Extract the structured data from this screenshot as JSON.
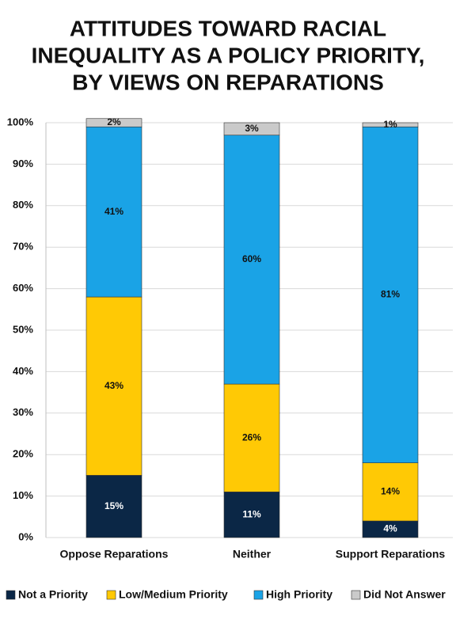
{
  "chart_data": {
    "type": "stacked_bar",
    "title": [
      "ATTITUDES TOWARD RACIAL",
      "INEQUALITY AS A POLICY PRIORITY,",
      "BY VIEWS ON REPARATIONS"
    ],
    "categories": [
      "Oppose Reparations",
      "Neither",
      "Support Reparations"
    ],
    "series": [
      {
        "name": "Not a Priority",
        "color": "#0b2746",
        "values": [
          15,
          11,
          4
        ],
        "value_labels": [
          "15%",
          "11%",
          "4%"
        ]
      },
      {
        "name": "Low/Medium Priority",
        "color": "#ffc905",
        "values": [
          43,
          26,
          14
        ],
        "value_labels": [
          "43%",
          "26%",
          "14%"
        ]
      },
      {
        "name": "High Priority",
        "color": "#1aa3e6",
        "values": [
          41,
          60,
          81
        ],
        "value_labels": [
          "41%",
          "60%",
          "81%"
        ]
      },
      {
        "name": "Did Not Answer",
        "color": "#cacaca",
        "values": [
          2,
          3,
          1
        ],
        "value_labels": [
          "2%",
          "3%",
          "1%"
        ]
      }
    ],
    "ylim": [
      0,
      100
    ],
    "yticks": [
      {
        "value": 0,
        "label": "0%"
      },
      {
        "value": 10,
        "label": "10%"
      },
      {
        "value": 20,
        "label": "20%"
      },
      {
        "value": 30,
        "label": "30%"
      },
      {
        "value": 40,
        "label": "40%"
      },
      {
        "value": 50,
        "label": "50%"
      },
      {
        "value": 60,
        "label": "60%"
      },
      {
        "value": 70,
        "label": "70%"
      },
      {
        "value": 80,
        "label": "80%"
      },
      {
        "value": 90,
        "label": "90%"
      },
      {
        "value": 100,
        "label": "100%"
      }
    ],
    "grid": true,
    "legend": "bottom"
  }
}
